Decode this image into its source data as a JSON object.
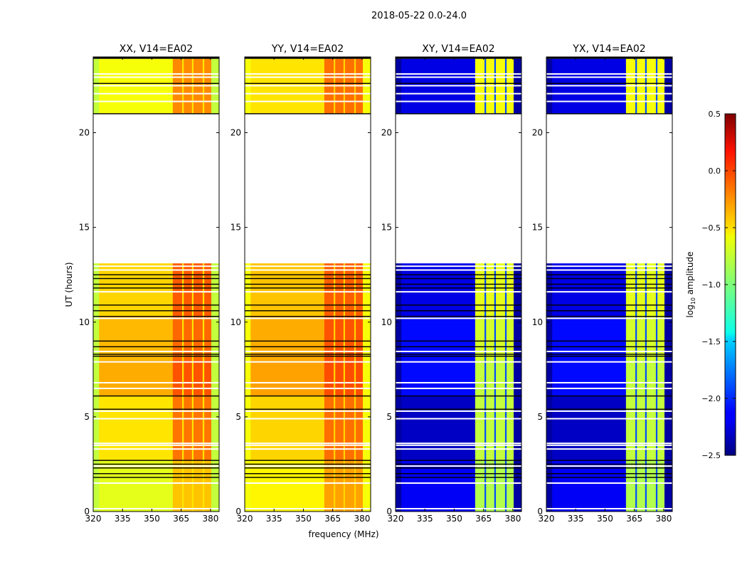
{
  "chart_data": {
    "type": "heatmap",
    "title": "2018-05-22 0.0-24.0",
    "xlabel": "frequency (MHz)",
    "ylabel": "UT (hours)",
    "xlim": [
      320,
      384.4
    ],
    "ylim": [
      0,
      24
    ],
    "xticks": [
      320,
      335,
      350,
      365,
      380
    ],
    "yticks": [
      0,
      5,
      10,
      15,
      20
    ],
    "colorbar": {
      "label_main": "log",
      "label_sub": "10",
      "label_rest": " amplitude",
      "range": [
        -2.5,
        0.5
      ],
      "ticks": [
        "0.5",
        "0.0",
        "−0.5",
        "−1.0",
        "−1.5",
        "−2.0",
        "−2.5"
      ],
      "tick_values": [
        0.5,
        0.0,
        -0.5,
        -1.0,
        -1.5,
        -2.0,
        -2.5
      ],
      "colormap": "jet"
    },
    "freq_columns": [
      {
        "from": 320,
        "to": 323,
        "kind": "edge"
      },
      {
        "from": 323,
        "to": 360.7,
        "kind": "base"
      },
      {
        "from": 360.7,
        "to": 365.5,
        "kind": "band"
      },
      {
        "from": 365.5,
        "to": 366.3,
        "kind": "gap"
      },
      {
        "from": 366.3,
        "to": 370.5,
        "kind": "band"
      },
      {
        "from": 370.5,
        "to": 371.3,
        "kind": "gap"
      },
      {
        "from": 371.3,
        "to": 376,
        "kind": "band"
      },
      {
        "from": 376,
        "to": 376.8,
        "kind": "gap"
      },
      {
        "from": 376.8,
        "to": 380.4,
        "kind": "band"
      },
      {
        "from": 380.4,
        "to": 384.4,
        "kind": "edge"
      }
    ],
    "time_blocks": [
      [
        0,
        2.7
      ],
      [
        2.7,
        6.1
      ],
      [
        6.1,
        8.0
      ],
      [
        8.0,
        10.3
      ],
      [
        10.3,
        13.1
      ],
      [
        21.0,
        23.9
      ]
    ],
    "flagged_white_hours": [
      23.1,
      22.93,
      22.48,
      22.06,
      21.65,
      12.95,
      12.75,
      11.6,
      10.2,
      8.45,
      7.9,
      6.8,
      6.5,
      5.3,
      4.9,
      3.6,
      3.5,
      3.3,
      2.4,
      1.5,
      0.15
    ],
    "flagged_black_hours": [
      23.95,
      22.6,
      21.0,
      12.5,
      12.3,
      12.0,
      11.8,
      10.9,
      10.6,
      10.3,
      9.0,
      8.7,
      8.3,
      8.2,
      6.1,
      5.4,
      2.7,
      2.5,
      2.3,
      2.0,
      1.8
    ],
    "series": [
      {
        "name": "XX, V14=EA02",
        "base": [
          -0.7,
          -0.55,
          -0.38,
          -0.42,
          -0.5,
          -0.65
        ],
        "band": [
          -0.45,
          -0.22,
          -0.12,
          -0.18,
          -0.14,
          -0.28
        ],
        "gap": -0.55,
        "edge": -0.8
      },
      {
        "name": "YY, V14=EA02",
        "base": [
          -0.6,
          -0.5,
          -0.35,
          -0.38,
          -0.45,
          -0.55
        ],
        "band": [
          -0.35,
          -0.2,
          -0.1,
          -0.12,
          -0.15,
          -0.2
        ],
        "gap": -0.5,
        "edge": -0.65
      },
      {
        "name": "XY, V14=EA02",
        "base": [
          -2.15,
          -2.3,
          -2.1,
          -2.1,
          -2.2,
          -2.2
        ],
        "band": [
          -0.85,
          -0.8,
          -0.8,
          -0.75,
          -0.7,
          -0.65
        ],
        "gap": -1.9,
        "edge": -2.4
      },
      {
        "name": "YX, V14=EA02",
        "base": [
          -2.15,
          -2.3,
          -2.1,
          -2.1,
          -2.2,
          -2.2
        ],
        "band": [
          -0.85,
          -0.8,
          -0.8,
          -0.75,
          -0.7,
          -0.65
        ],
        "gap": -1.9,
        "edge": -2.4
      }
    ]
  }
}
